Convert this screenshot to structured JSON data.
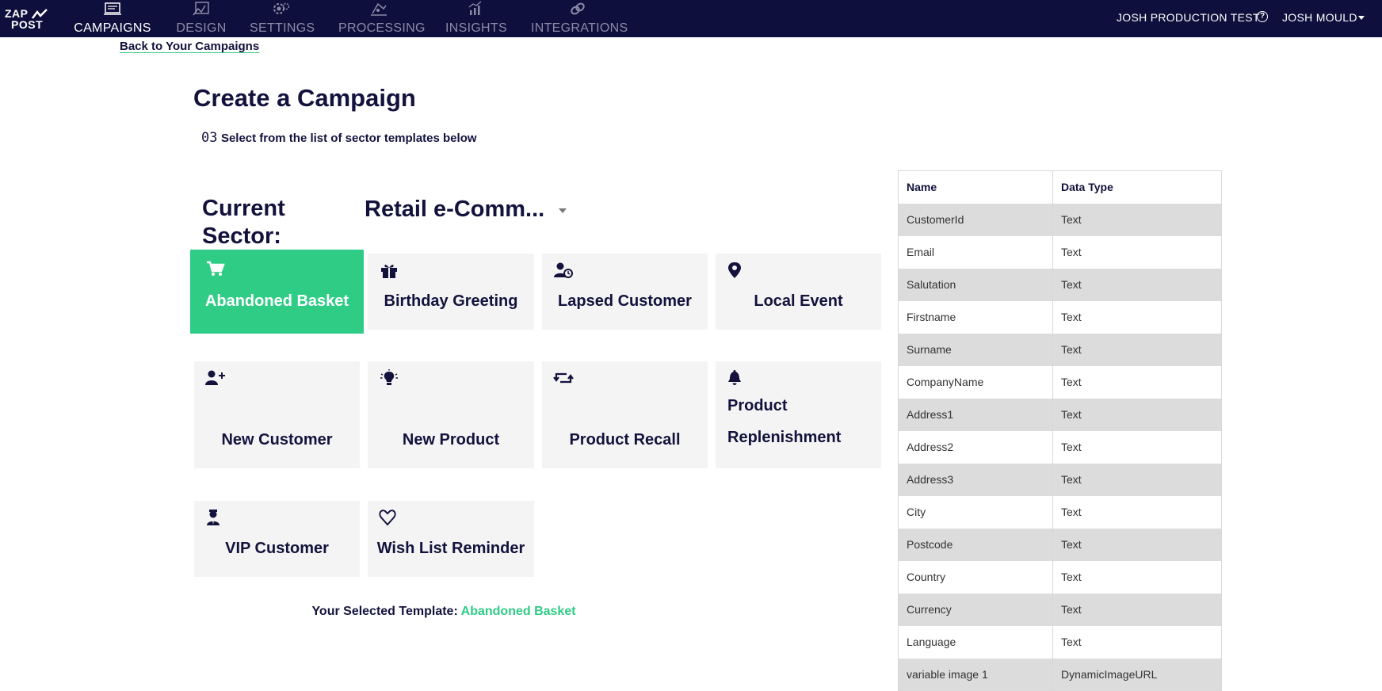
{
  "brand": {
    "line1": "ZAP",
    "line2": "POST",
    "registered": "®"
  },
  "nav": {
    "items": [
      {
        "label": "CAMPAIGNS",
        "active": true
      },
      {
        "label": "DESIGN",
        "active": false
      },
      {
        "label": "SETTINGS",
        "active": false
      },
      {
        "label": "PROCESSING",
        "active": false
      },
      {
        "label": "INSIGHTS",
        "active": false
      },
      {
        "label": "INTEGRATIONS",
        "active": false
      }
    ],
    "account": "JOSH PRODUCTION TEST",
    "help_glyph": "?",
    "user": "JOSH MOULD"
  },
  "page": {
    "back_link": "Back to Your Campaigns",
    "title": "Create a Campaign",
    "step_number": "03",
    "step_text": "Select from the list of sector templates below",
    "sector_label": "Current Sector:",
    "sector_value": "Retail e-Comm..."
  },
  "templates": [
    {
      "label": "Abandoned Basket",
      "icon": "cart-icon",
      "selected": true
    },
    {
      "label": "Birthday Greeting",
      "icon": "gift-icon",
      "selected": false
    },
    {
      "label": "Lapsed Customer",
      "icon": "user-clock-icon",
      "selected": false
    },
    {
      "label": "Local Event",
      "icon": "map-pin-icon",
      "selected": false
    },
    {
      "label": "New Customer",
      "icon": "user-plus-icon",
      "selected": false
    },
    {
      "label": "New Product",
      "icon": "lightbulb-icon",
      "selected": false
    },
    {
      "label": "Product Recall",
      "icon": "retweet-icon",
      "selected": false
    },
    {
      "label": "Product Replenishment",
      "icon": "bell-icon",
      "selected": false
    },
    {
      "label": "VIP Customer",
      "icon": "user-tie-icon",
      "selected": false
    },
    {
      "label": "Wish List Reminder",
      "icon": "heart-icon",
      "selected": false
    }
  ],
  "selected_template": {
    "label": "Your Selected Template:",
    "value": "Abandoned Basket"
  },
  "fields_table": {
    "headers": [
      "Name",
      "Data Type"
    ],
    "rows": [
      [
        "CustomerId",
        "Text"
      ],
      [
        "Email",
        "Text"
      ],
      [
        "Salutation",
        "Text"
      ],
      [
        "Firstname",
        "Text"
      ],
      [
        "Surname",
        "Text"
      ],
      [
        "CompanyName",
        "Text"
      ],
      [
        "Address1",
        "Text"
      ],
      [
        "Address2",
        "Text"
      ],
      [
        "Address3",
        "Text"
      ],
      [
        "City",
        "Text"
      ],
      [
        "Postcode",
        "Text"
      ],
      [
        "Country",
        "Text"
      ],
      [
        "Currency",
        "Text"
      ],
      [
        "Language",
        "Text"
      ],
      [
        "variable image 1",
        "DynamicImageURL"
      ]
    ]
  },
  "colors": {
    "navy": "#0f0f3d",
    "accent_green": "#2ecc85",
    "tile_bg": "#f4f4f4",
    "row_stripe": "#dcdcdc"
  }
}
